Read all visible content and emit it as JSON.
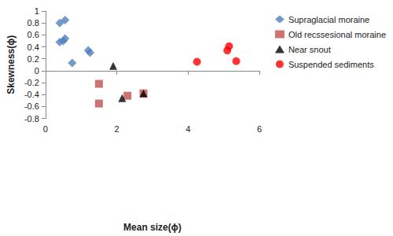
{
  "chart_data": {
    "type": "scatter",
    "x_label": "Mean size(ϕ)",
    "y_label": "Skewness(ϕ)",
    "xlim": [
      0,
      6
    ],
    "xticks": [
      0,
      2,
      4,
      6
    ],
    "ylim": [
      -0.8,
      1
    ],
    "yticks": [
      -0.8,
      -0.6,
      -0.4,
      -0.2,
      0,
      0.2,
      0.4,
      0.6,
      0.8,
      1
    ],
    "grid": false,
    "legend": "top-right",
    "series": [
      {
        "name": "Supraglacial moraine",
        "color": "#4f81bd",
        "marker": "diamond",
        "x": [
          0.4,
          0.55,
          0.4,
          0.5,
          0.55,
          0.75,
          1.2,
          1.25
        ],
        "y": [
          0.8,
          0.85,
          0.48,
          0.5,
          0.54,
          0.13,
          0.34,
          0.3
        ]
      },
      {
        "name": "Old recssesional moraine",
        "color": "#c0504d",
        "marker": "square",
        "x": [
          1.5,
          1.5,
          2.3,
          2.75
        ],
        "y": [
          -0.22,
          -0.55,
          -0.42,
          -0.38
        ]
      },
      {
        "name": "Near snout",
        "color": "#000000",
        "marker": "triangle",
        "x": [
          1.9,
          2.15,
          2.75
        ],
        "y": [
          0.08,
          -0.46,
          -0.38
        ]
      },
      {
        "name": "Suspended sediments",
        "color": "#ff0000",
        "marker": "circle",
        "x": [
          4.25,
          5.1,
          5.15,
          5.35
        ],
        "y": [
          0.15,
          0.34,
          0.41,
          0.16
        ]
      }
    ]
  }
}
